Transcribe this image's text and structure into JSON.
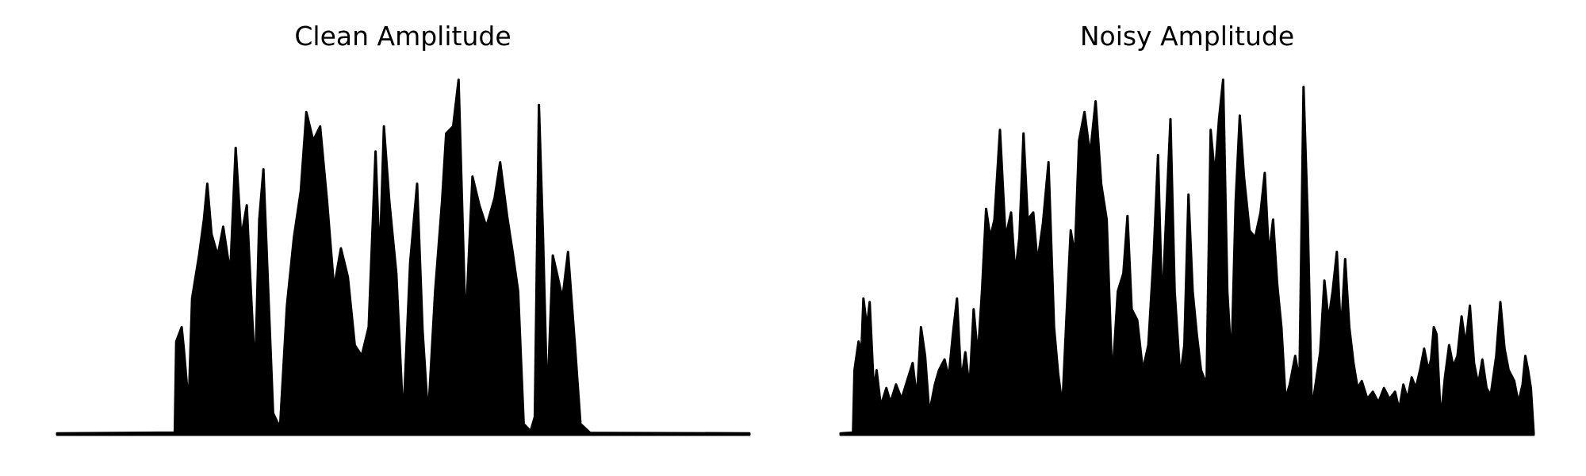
{
  "figure": {
    "background": "#ffffff",
    "ink_color": "#000000"
  },
  "chart_data": [
    {
      "type": "area",
      "title": "Clean Amplitude",
      "xlabel": "",
      "ylabel": "",
      "axes_visible": false,
      "grid": false,
      "legend": "none",
      "xlim": [
        0,
        1
      ],
      "ylim": [
        0,
        1
      ],
      "series": [
        {
          "values": [
            [
              0.0,
              0.004
            ],
            [
              0.17,
              0.006
            ],
            [
              0.172,
              0.26
            ],
            [
              0.18,
              0.3
            ],
            [
              0.183,
              0.24
            ],
            [
              0.19,
              0.08
            ],
            [
              0.195,
              0.38
            ],
            [
              0.205,
              0.5
            ],
            [
              0.212,
              0.6
            ],
            [
              0.217,
              0.7
            ],
            [
              0.223,
              0.56
            ],
            [
              0.232,
              0.5
            ],
            [
              0.24,
              0.58
            ],
            [
              0.25,
              0.45
            ],
            [
              0.258,
              0.8
            ],
            [
              0.266,
              0.55
            ],
            [
              0.274,
              0.64
            ],
            [
              0.28,
              0.4
            ],
            [
              0.286,
              0.17
            ],
            [
              0.292,
              0.6
            ],
            [
              0.298,
              0.74
            ],
            [
              0.304,
              0.45
            ],
            [
              0.312,
              0.06
            ],
            [
              0.322,
              0.02
            ],
            [
              0.332,
              0.36
            ],
            [
              0.342,
              0.55
            ],
            [
              0.352,
              0.68
            ],
            [
              0.36,
              0.9
            ],
            [
              0.37,
              0.82
            ],
            [
              0.38,
              0.86
            ],
            [
              0.39,
              0.65
            ],
            [
              0.4,
              0.41
            ],
            [
              0.41,
              0.52
            ],
            [
              0.42,
              0.44
            ],
            [
              0.43,
              0.25
            ],
            [
              0.44,
              0.22
            ],
            [
              0.45,
              0.3
            ],
            [
              0.46,
              0.79
            ],
            [
              0.466,
              0.48
            ],
            [
              0.472,
              0.86
            ],
            [
              0.48,
              0.65
            ],
            [
              0.49,
              0.45
            ],
            [
              0.5,
              0.04
            ],
            [
              0.51,
              0.48
            ],
            [
              0.52,
              0.7
            ],
            [
              0.528,
              0.29
            ],
            [
              0.536,
              0.05
            ],
            [
              0.546,
              0.4
            ],
            [
              0.556,
              0.65
            ],
            [
              0.562,
              0.84
            ],
            [
              0.572,
              0.86
            ],
            [
              0.58,
              0.99
            ],
            [
              0.59,
              0.3
            ],
            [
              0.6,
              0.72
            ],
            [
              0.61,
              0.64
            ],
            [
              0.62,
              0.58
            ],
            [
              0.632,
              0.66
            ],
            [
              0.64,
              0.76
            ],
            [
              0.65,
              0.61
            ],
            [
              0.658,
              0.51
            ],
            [
              0.666,
              0.4
            ],
            [
              0.674,
              0.03
            ],
            [
              0.684,
              0.01
            ],
            [
              0.69,
              0.05
            ],
            [
              0.696,
              0.92
            ],
            [
              0.702,
              0.55
            ],
            [
              0.708,
              0.09
            ],
            [
              0.716,
              0.5
            ],
            [
              0.722,
              0.45
            ],
            [
              0.73,
              0.38
            ],
            [
              0.738,
              0.51
            ],
            [
              0.748,
              0.25
            ],
            [
              0.756,
              0.03
            ],
            [
              0.77,
              0.005
            ],
            [
              1.0,
              0.004
            ]
          ]
        }
      ]
    },
    {
      "type": "area",
      "title": "Noisy Amplitude",
      "xlabel": "",
      "ylabel": "",
      "axes_visible": false,
      "grid": false,
      "legend": "none",
      "xlim": [
        0,
        1
      ],
      "ylim": [
        0,
        1
      ],
      "series": [
        {
          "values": [
            [
              0.0,
              0.004
            ],
            [
              0.018,
              0.006
            ],
            [
              0.02,
              0.18
            ],
            [
              0.026,
              0.26
            ],
            [
              0.03,
              0.23
            ],
            [
              0.033,
              0.38
            ],
            [
              0.038,
              0.3
            ],
            [
              0.042,
              0.37
            ],
            [
              0.048,
              0.12
            ],
            [
              0.052,
              0.18
            ],
            [
              0.058,
              0.08
            ],
            [
              0.066,
              0.13
            ],
            [
              0.072,
              0.09
            ],
            [
              0.08,
              0.14
            ],
            [
              0.088,
              0.1
            ],
            [
              0.096,
              0.15
            ],
            [
              0.104,
              0.2
            ],
            [
              0.11,
              0.1
            ],
            [
              0.116,
              0.3
            ],
            [
              0.122,
              0.22
            ],
            [
              0.128,
              0.06
            ],
            [
              0.136,
              0.14
            ],
            [
              0.142,
              0.18
            ],
            [
              0.15,
              0.21
            ],
            [
              0.156,
              0.16
            ],
            [
              0.162,
              0.28
            ],
            [
              0.168,
              0.38
            ],
            [
              0.174,
              0.15
            ],
            [
              0.18,
              0.23
            ],
            [
              0.186,
              0.13
            ],
            [
              0.192,
              0.35
            ],
            [
              0.198,
              0.22
            ],
            [
              0.204,
              0.4
            ],
            [
              0.21,
              0.63
            ],
            [
              0.216,
              0.55
            ],
            [
              0.222,
              0.6
            ],
            [
              0.23,
              0.85
            ],
            [
              0.238,
              0.55
            ],
            [
              0.246,
              0.62
            ],
            [
              0.252,
              0.45
            ],
            [
              0.258,
              0.55
            ],
            [
              0.264,
              0.84
            ],
            [
              0.27,
              0.6
            ],
            [
              0.278,
              0.62
            ],
            [
              0.284,
              0.48
            ],
            [
              0.292,
              0.59
            ],
            [
              0.3,
              0.76
            ],
            [
              0.308,
              0.3
            ],
            [
              0.314,
              0.17
            ],
            [
              0.32,
              0.08
            ],
            [
              0.326,
              0.33
            ],
            [
              0.332,
              0.57
            ],
            [
              0.338,
              0.5
            ],
            [
              0.344,
              0.82
            ],
            [
              0.352,
              0.9
            ],
            [
              0.36,
              0.78
            ],
            [
              0.368,
              0.93
            ],
            [
              0.376,
              0.7
            ],
            [
              0.384,
              0.6
            ],
            [
              0.392,
              0.15
            ],
            [
              0.4,
              0.4
            ],
            [
              0.408,
              0.45
            ],
            [
              0.414,
              0.61
            ],
            [
              0.42,
              0.35
            ],
            [
              0.428,
              0.32
            ],
            [
              0.436,
              0.18
            ],
            [
              0.444,
              0.25
            ],
            [
              0.452,
              0.51
            ],
            [
              0.458,
              0.78
            ],
            [
              0.464,
              0.35
            ],
            [
              0.47,
              0.62
            ],
            [
              0.476,
              0.88
            ],
            [
              0.482,
              0.4
            ],
            [
              0.49,
              0.16
            ],
            [
              0.496,
              0.25
            ],
            [
              0.502,
              0.67
            ],
            [
              0.508,
              0.4
            ],
            [
              0.514,
              0.28
            ],
            [
              0.52,
              0.18
            ],
            [
              0.528,
              0.14
            ],
            [
              0.534,
              0.85
            ],
            [
              0.54,
              0.72
            ],
            [
              0.546,
              0.88
            ],
            [
              0.552,
              0.99
            ],
            [
              0.558,
              0.4
            ],
            [
              0.564,
              0.2
            ],
            [
              0.57,
              0.65
            ],
            [
              0.576,
              0.89
            ],
            [
              0.582,
              0.72
            ],
            [
              0.59,
              0.57
            ],
            [
              0.598,
              0.55
            ],
            [
              0.606,
              0.62
            ],
            [
              0.612,
              0.73
            ],
            [
              0.618,
              0.5
            ],
            [
              0.624,
              0.6
            ],
            [
              0.63,
              0.42
            ],
            [
              0.636,
              0.3
            ],
            [
              0.642,
              0.1
            ],
            [
              0.648,
              0.14
            ],
            [
              0.656,
              0.22
            ],
            [
              0.662,
              0.15
            ],
            [
              0.668,
              0.97
            ],
            [
              0.674,
              0.6
            ],
            [
              0.68,
              0.07
            ],
            [
              0.686,
              0.15
            ],
            [
              0.692,
              0.23
            ],
            [
              0.698,
              0.43
            ],
            [
              0.704,
              0.32
            ],
            [
              0.71,
              0.4
            ],
            [
              0.716,
              0.51
            ],
            [
              0.722,
              0.28
            ],
            [
              0.728,
              0.49
            ],
            [
              0.734,
              0.3
            ],
            [
              0.74,
              0.2
            ],
            [
              0.746,
              0.13
            ],
            [
              0.752,
              0.15
            ],
            [
              0.76,
              0.1
            ],
            [
              0.768,
              0.12
            ],
            [
              0.776,
              0.09
            ],
            [
              0.784,
              0.13
            ],
            [
              0.792,
              0.1
            ],
            [
              0.8,
              0.12
            ],
            [
              0.806,
              0.07
            ],
            [
              0.812,
              0.14
            ],
            [
              0.818,
              0.1
            ],
            [
              0.824,
              0.16
            ],
            [
              0.83,
              0.13
            ],
            [
              0.836,
              0.18
            ],
            [
              0.842,
              0.24
            ],
            [
              0.848,
              0.18
            ],
            [
              0.852,
              0.21
            ],
            [
              0.856,
              0.3
            ],
            [
              0.86,
              0.28
            ],
            [
              0.866,
              0.04
            ],
            [
              0.872,
              0.16
            ],
            [
              0.878,
              0.25
            ],
            [
              0.884,
              0.19
            ],
            [
              0.89,
              0.22
            ],
            [
              0.896,
              0.33
            ],
            [
              0.902,
              0.25
            ],
            [
              0.908,
              0.36
            ],
            [
              0.914,
              0.2
            ],
            [
              0.92,
              0.14
            ],
            [
              0.926,
              0.21
            ],
            [
              0.932,
              0.13
            ],
            [
              0.938,
              0.11
            ],
            [
              0.946,
              0.22
            ],
            [
              0.952,
              0.37
            ],
            [
              0.958,
              0.24
            ],
            [
              0.964,
              0.18
            ],
            [
              0.972,
              0.15
            ],
            [
              0.978,
              0.09
            ],
            [
              0.984,
              0.14
            ],
            [
              0.988,
              0.22
            ],
            [
              0.992,
              0.18
            ],
            [
              0.996,
              0.13
            ],
            [
              1.0,
              0.005
            ]
          ]
        }
      ]
    }
  ]
}
